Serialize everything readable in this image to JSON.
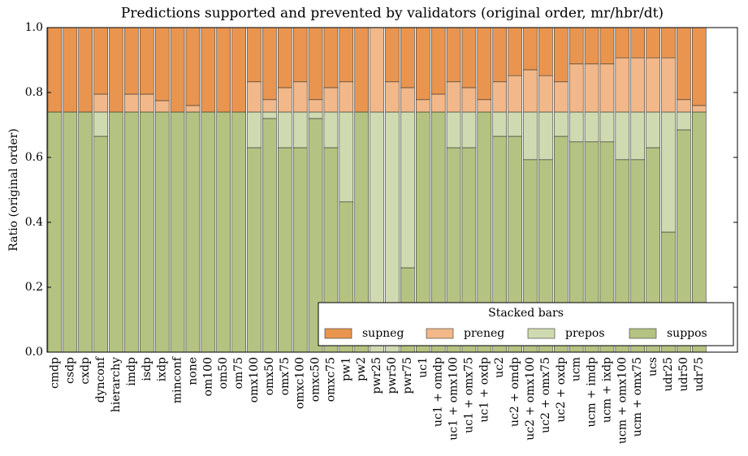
{
  "chart_data": {
    "type": "stacked-bar",
    "title": "Predictions supported and prevented by validators (original order, mr/hbr/dt)",
    "ylabel": "Ratio (original order)",
    "legend_title": "Stacked bars",
    "legend_loc": "lower right",
    "categories": [
      "cmdp",
      "csdp",
      "cxdp",
      "dynconf",
      "hierarchy",
      "imdp",
      "isdp",
      "ixdp",
      "minconf",
      "none",
      "om100",
      "om50",
      "om75",
      "omx100",
      "omx50",
      "omx75",
      "omxc100",
      "omxc50",
      "omxc75",
      "pw1",
      "pw2",
      "pwr25",
      "pwr50",
      "pwr75",
      "uc1",
      "uc1 + omdp",
      "uc1 + omx100",
      "uc1 + omx75",
      "uc1 + oxdp",
      "uc2",
      "uc2 + omdp",
      "uc2 + omx100",
      "uc2 + omx75",
      "uc2 + oxdp",
      "ucm",
      "ucm + imdp",
      "ucm + ixdp",
      "ucm + omx100",
      "ucm + omx75",
      "ucs",
      "udr25",
      "udr50",
      "udr75"
    ],
    "series": [
      {
        "name": "supneg",
        "color": "#e9954f",
        "values": [
          0.26,
          0.26,
          0.26,
          0.205,
          0.26,
          0.205,
          0.205,
          0.225,
          0.26,
          0.24,
          0.26,
          0.26,
          0.26,
          0.167,
          0.222,
          0.185,
          0.167,
          0.222,
          0.185,
          0.167,
          0.26,
          0,
          0.167,
          0.185,
          0.222,
          0.205,
          0.167,
          0.185,
          0.222,
          0.167,
          0.148,
          0.13,
          0.148,
          0.167,
          0.112,
          0.112,
          0.112,
          0.093,
          0.093,
          0.093,
          0.093,
          0.222,
          0.24
        ]
      },
      {
        "name": "preneg",
        "color": "#f2b889",
        "values": [
          0,
          0,
          0,
          0.055,
          0,
          0.055,
          0.055,
          0.035,
          0,
          0.02,
          0,
          0,
          0,
          0.093,
          0.038,
          0.075,
          0.093,
          0.038,
          0.075,
          0.093,
          0,
          0.26,
          0.093,
          0.075,
          0.038,
          0.055,
          0.093,
          0.075,
          0.038,
          0.093,
          0.112,
          0.13,
          0.112,
          0.093,
          0.148,
          0.148,
          0.148,
          0.167,
          0.167,
          0.167,
          0.167,
          0.038,
          0.02
        ]
      },
      {
        "name": "prepos",
        "color": "#d0dab1",
        "values": [
          0,
          0,
          0,
          0.075,
          0,
          0,
          0,
          0,
          0,
          0,
          0,
          0,
          0,
          0.11,
          0.02,
          0.11,
          0.11,
          0.02,
          0.11,
          0.277,
          0,
          0.74,
          0.74,
          0.48,
          0,
          0,
          0.11,
          0.11,
          0,
          0.075,
          0.075,
          0.147,
          0.147,
          0.075,
          0.092,
          0.092,
          0.092,
          0.147,
          0.147,
          0.11,
          0.37,
          0.055,
          0
        ]
      },
      {
        "name": "suppos",
        "color": "#b5c382",
        "values": [
          0.74,
          0.74,
          0.74,
          0.665,
          0.74,
          0.74,
          0.74,
          0.74,
          0.74,
          0.74,
          0.74,
          0.74,
          0.74,
          0.63,
          0.72,
          0.63,
          0.63,
          0.72,
          0.63,
          0.463,
          0.74,
          0,
          0,
          0.26,
          0.74,
          0.74,
          0.63,
          0.63,
          0.74,
          0.665,
          0.665,
          0.593,
          0.593,
          0.665,
          0.648,
          0.648,
          0.648,
          0.593,
          0.593,
          0.63,
          0.37,
          0.685,
          0.74
        ]
      }
    ],
    "ylim": [
      0,
      1
    ],
    "yticks": [
      {
        "value": 0,
        "label": "0.0"
      },
      {
        "value": 0.2,
        "label": "0.2"
      },
      {
        "value": 0.4,
        "label": "0.4"
      },
      {
        "value": 0.6,
        "label": "0.6"
      },
      {
        "value": 0.8,
        "label": "0.8"
      },
      {
        "value": 1,
        "label": "1.0"
      }
    ]
  }
}
